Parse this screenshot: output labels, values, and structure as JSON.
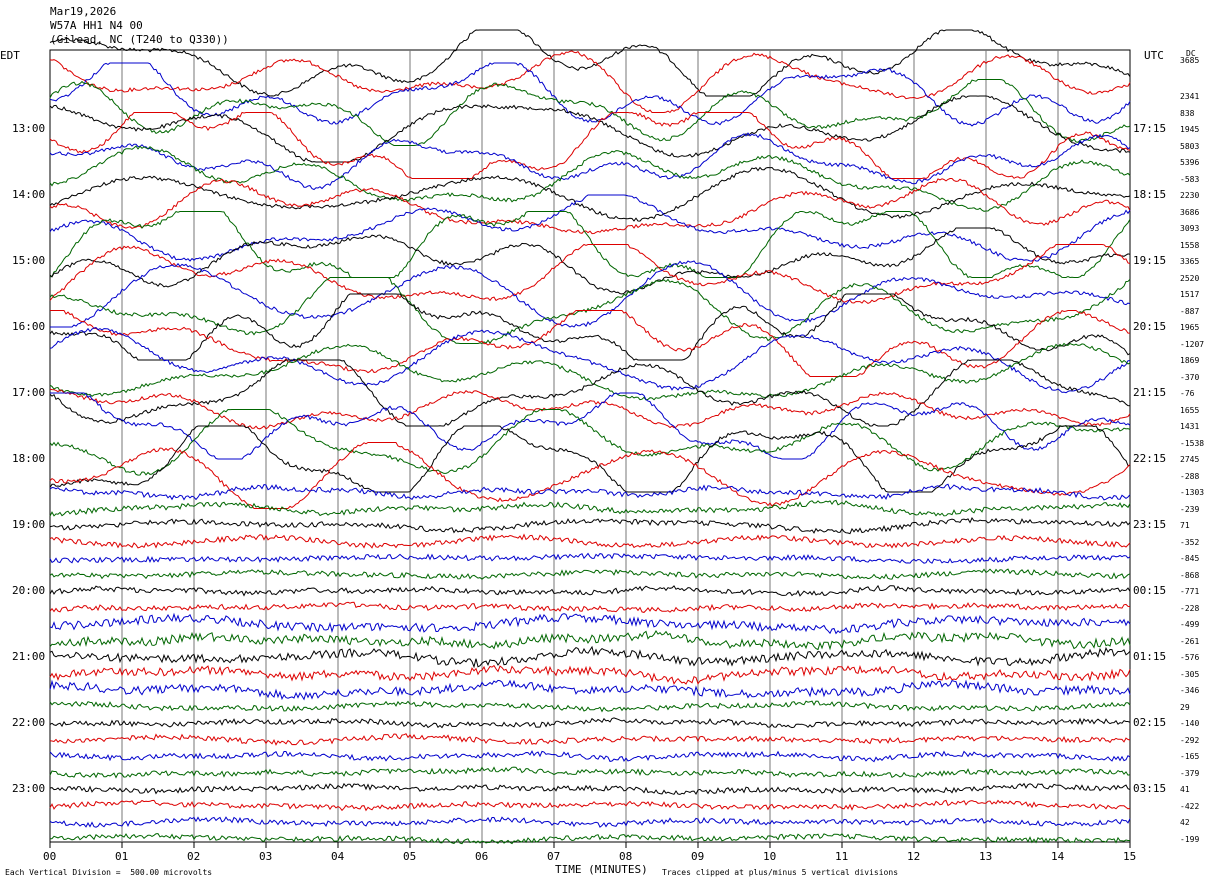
{
  "header": {
    "date": "Mar19,2026",
    "channel": "W57A HH1 N4 00",
    "location": "(Gilead, NC (T240 to Q330))"
  },
  "left_axis_title": "EDT",
  "right_axis_title": "UTC",
  "dc_label": "DC",
  "footer": {
    "vertical_division": "Each Vertical Division =  500.00 microvolts",
    "x_title": "TIME (MINUTES)",
    "clip_note": "Traces clipped at plus/minus 5 vertical divisions"
  },
  "chart_data": {
    "type": "line",
    "title": "W57A HH1 N4 00",
    "xlabel": "TIME (MINUTES)",
    "ylabel": "EDT",
    "xlim": [
      0,
      15
    ],
    "x_ticks": [
      "00",
      "01",
      "02",
      "03",
      "04",
      "05",
      "06",
      "07",
      "08",
      "09",
      "10",
      "11",
      "12",
      "13",
      "14",
      "15"
    ],
    "left_hour_labels": [
      "13:00",
      "14:00",
      "15:00",
      "16:00",
      "17:00",
      "18:00",
      "19:00",
      "20:00",
      "21:00",
      "22:00",
      "23:00"
    ],
    "right_hour_labels": [
      "17:15",
      "18:15",
      "19:15",
      "20:15",
      "21:15",
      "22:15",
      "23:15",
      "00:15",
      "01:15",
      "02:15",
      "03:15"
    ],
    "trace_colors": [
      "#000000",
      "#dd0000",
      "#0000cc",
      "#006600"
    ],
    "trace_count": 48,
    "dc_offsets": [
      "3685",
      "2341",
      "838",
      "1945",
      "5803",
      "5396",
      "-583",
      "2230",
      "3686",
      "3093",
      "1558",
      "3365",
      "2520",
      "1517",
      "-887",
      "1965",
      "-1207",
      "1869",
      "-370",
      "-76",
      "1655",
      "1431",
      "-1538",
      "2745",
      "-288",
      "-1303",
      "-239",
      "71",
      "-352",
      "-845",
      "-868",
      "-771",
      "-228",
      "-499",
      "-261",
      "-576",
      "-305",
      "-346",
      "29",
      "-140",
      "-292",
      "-165",
      "-379",
      "41",
      "-422",
      "42",
      "-199"
    ],
    "grid": true,
    "vertical_division_microvolts": 500
  }
}
